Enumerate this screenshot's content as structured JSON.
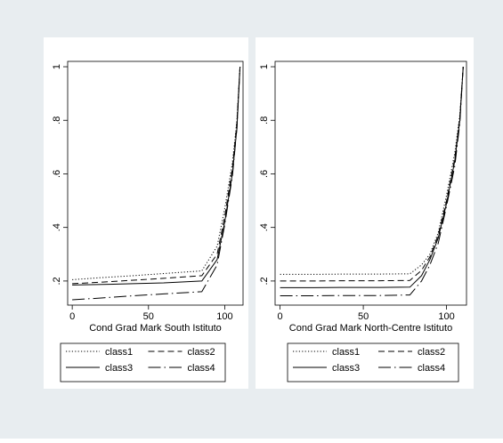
{
  "colors": {
    "outer_background": "#e8edf0",
    "plot_background": "#ffffff",
    "line": "#000000"
  },
  "chart_data": [
    {
      "type": "line",
      "title": "",
      "xlabel": "Cond Grad Mark South Istituto",
      "ylabel": "",
      "xlim": [
        -3,
        112
      ],
      "ylim": [
        0.11,
        1.02
      ],
      "x_ticks": [
        0,
        50,
        100
      ],
      "x_tick_labels": [
        "0",
        "50",
        "100"
      ],
      "y_ticks": [
        0.2,
        0.4,
        0.6,
        0.8,
        1
      ],
      "y_tick_labels": [
        ".2",
        ".4",
        ".6",
        ".8",
        "1"
      ],
      "grid": false,
      "legend_position": "bottom",
      "legend_columns": 2,
      "series": [
        {
          "name": "class1",
          "style": "dotted",
          "x": [
            0,
            20,
            40,
            60,
            85,
            95,
            100,
            105,
            108,
            110
          ],
          "y": [
            0.205,
            0.213,
            0.22,
            0.228,
            0.238,
            0.33,
            0.47,
            0.64,
            0.8,
            1.0
          ]
        },
        {
          "name": "class2",
          "style": "dashed",
          "x": [
            0,
            20,
            40,
            60,
            85,
            95,
            100,
            105,
            108,
            110
          ],
          "y": [
            0.19,
            0.196,
            0.203,
            0.21,
            0.22,
            0.3,
            0.44,
            0.62,
            0.79,
            1.0
          ]
        },
        {
          "name": "class3",
          "style": "solid",
          "x": [
            0,
            20,
            40,
            60,
            85,
            95,
            100,
            105,
            108,
            110
          ],
          "y": [
            0.185,
            0.187,
            0.19,
            0.193,
            0.2,
            0.28,
            0.42,
            0.6,
            0.77,
            1.0
          ]
        },
        {
          "name": "class4",
          "style": "longdash",
          "x": [
            0,
            20,
            40,
            60,
            85,
            95,
            100,
            105,
            108,
            110
          ],
          "y": [
            0.13,
            0.137,
            0.145,
            0.152,
            0.16,
            0.26,
            0.41,
            0.59,
            0.77,
            1.0
          ]
        }
      ]
    },
    {
      "type": "line",
      "title": "",
      "xlabel": "Cond Grad Mark North-Centre Istituto",
      "ylabel": "",
      "xlim": [
        -3,
        112
      ],
      "ylim": [
        0.11,
        1.02
      ],
      "x_ticks": [
        0,
        50,
        100
      ],
      "x_tick_labels": [
        "0",
        "50",
        "100"
      ],
      "y_ticks": [
        0.2,
        0.4,
        0.6,
        0.8,
        1
      ],
      "y_tick_labels": [
        ".2",
        ".4",
        ".6",
        ".8",
        "1"
      ],
      "grid": false,
      "legend_position": "bottom",
      "legend_columns": 2,
      "series": [
        {
          "name": "class1",
          "style": "dotted",
          "x": [
            0,
            20,
            40,
            60,
            78,
            85,
            90,
            95,
            100,
            105,
            108,
            110
          ],
          "y": [
            0.225,
            0.225,
            0.226,
            0.226,
            0.227,
            0.26,
            0.3,
            0.38,
            0.52,
            0.68,
            0.82,
            1.0
          ]
        },
        {
          "name": "class2",
          "style": "dashed",
          "x": [
            0,
            20,
            40,
            60,
            78,
            85,
            90,
            95,
            100,
            105,
            108,
            110
          ],
          "y": [
            0.2,
            0.2,
            0.201,
            0.201,
            0.202,
            0.24,
            0.29,
            0.37,
            0.5,
            0.66,
            0.81,
            1.0
          ]
        },
        {
          "name": "class3",
          "style": "solid",
          "x": [
            0,
            20,
            40,
            60,
            78,
            85,
            90,
            95,
            100,
            105,
            108,
            110
          ],
          "y": [
            0.175,
            0.175,
            0.176,
            0.176,
            0.177,
            0.22,
            0.28,
            0.36,
            0.49,
            0.65,
            0.8,
            1.0
          ]
        },
        {
          "name": "class4",
          "style": "longdash",
          "x": [
            0,
            20,
            40,
            60,
            78,
            85,
            90,
            95,
            100,
            105,
            108,
            110
          ],
          "y": [
            0.145,
            0.145,
            0.146,
            0.146,
            0.148,
            0.2,
            0.26,
            0.34,
            0.48,
            0.63,
            0.79,
            1.0
          ]
        }
      ]
    }
  ]
}
